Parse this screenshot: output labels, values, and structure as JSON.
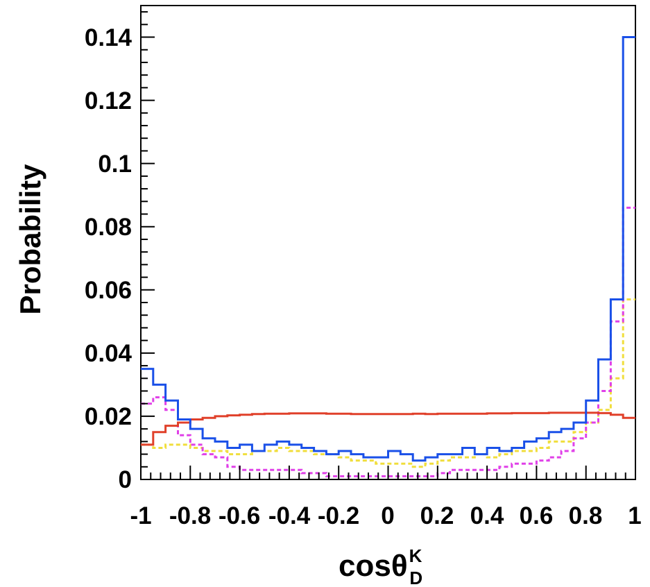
{
  "chart_data": {
    "type": "step",
    "title": "",
    "xlabel": {
      "main": "cosθ",
      "sup": "K",
      "sub": "D"
    },
    "ylabel": "Probability",
    "xlim": [
      -1,
      1
    ],
    "ylim": [
      0,
      0.15
    ],
    "bins": 40,
    "x_tick_labels": [
      "-1",
      "-0.8",
      "-0.6",
      "-0.4",
      "-0.2",
      "0",
      "0.2",
      "0.4",
      "0.6",
      "0.8",
      "1"
    ],
    "y_tick_labels": [
      "0",
      "0.02",
      "0.04",
      "0.06",
      "0.08",
      "0.1",
      "0.12",
      "0.14"
    ],
    "grid": false,
    "legend": false,
    "series": [
      {
        "color": "#f0de3c",
        "dashed": true,
        "values": [
          0.011,
          0.01,
          0.011,
          0.011,
          0.01,
          0.009,
          0.009,
          0.008,
          0.008,
          0.009,
          0.009,
          0.01,
          0.009,
          0.009,
          0.008,
          0.008,
          0.007,
          0.006,
          0.006,
          0.005,
          0.005,
          0.005,
          0.004,
          0.005,
          0.006,
          0.007,
          0.007,
          0.008,
          0.007,
          0.008,
          0.009,
          0.009,
          0.01,
          0.012,
          0.012,
          0.015,
          0.018,
          0.022,
          0.032,
          0.057
        ]
      },
      {
        "color": "#e040e8",
        "dashed": true,
        "values": [
          0.024,
          0.026,
          0.022,
          0.014,
          0.011,
          0.008,
          0.007,
          0.004,
          0.003,
          0.003,
          0.003,
          0.003,
          0.003,
          0.002,
          0.002,
          0.001,
          0.001,
          0.001,
          0.001,
          0.001,
          0.001,
          0.001,
          0.001,
          0.001,
          0.002,
          0.003,
          0.003,
          0.003,
          0.003,
          0.004,
          0.005,
          0.005,
          0.006,
          0.007,
          0.009,
          0.013,
          0.018,
          0.028,
          0.05,
          0.086
        ]
      },
      {
        "color": "#e0402a",
        "dashed": false,
        "values": [
          0.011,
          0.015,
          0.017,
          0.018,
          0.019,
          0.0195,
          0.02,
          0.0203,
          0.0205,
          0.0207,
          0.0208,
          0.0208,
          0.0209,
          0.0209,
          0.0209,
          0.0208,
          0.0208,
          0.0207,
          0.0207,
          0.0207,
          0.0207,
          0.0207,
          0.0208,
          0.0207,
          0.0208,
          0.0208,
          0.0208,
          0.0208,
          0.0209,
          0.0209,
          0.021,
          0.021,
          0.021,
          0.0211,
          0.0211,
          0.0211,
          0.0211,
          0.021,
          0.0205,
          0.0195
        ]
      },
      {
        "color": "#1a50e8",
        "dashed": false,
        "values": [
          0.035,
          0.03,
          0.025,
          0.019,
          0.016,
          0.013,
          0.012,
          0.01,
          0.011,
          0.009,
          0.011,
          0.012,
          0.011,
          0.01,
          0.009,
          0.008,
          0.009,
          0.008,
          0.007,
          0.007,
          0.009,
          0.008,
          0.006,
          0.007,
          0.008,
          0.008,
          0.01,
          0.008,
          0.01,
          0.009,
          0.01,
          0.012,
          0.013,
          0.015,
          0.016,
          0.018,
          0.025,
          0.038,
          0.057,
          0.14
        ]
      }
    ]
  }
}
